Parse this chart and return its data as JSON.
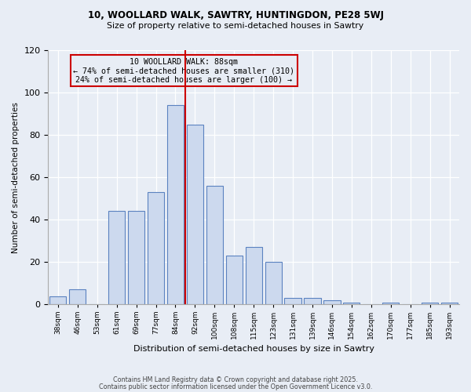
{
  "title1": "10, WOOLLARD WALK, SAWTRY, HUNTINGDON, PE28 5WJ",
  "title2": "Size of property relative to semi-detached houses in Sawtry",
  "xlabel": "Distribution of semi-detached houses by size in Sawtry",
  "ylabel": "Number of semi-detached properties",
  "bin_labels": [
    "38sqm",
    "46sqm",
    "53sqm",
    "61sqm",
    "69sqm",
    "77sqm",
    "84sqm",
    "92sqm",
    "100sqm",
    "108sqm",
    "115sqm",
    "123sqm",
    "131sqm",
    "139sqm",
    "146sqm",
    "154sqm",
    "162sqm",
    "170sqm",
    "177sqm",
    "185sqm",
    "193sqm"
  ],
  "bar_heights": [
    4,
    7,
    0,
    44,
    44,
    53,
    94,
    85,
    56,
    23,
    27,
    20,
    3,
    3,
    2,
    1,
    0,
    1,
    0,
    1,
    1
  ],
  "bar_color": "#ccd9ee",
  "bar_edge_color": "#5b82c0",
  "vline_x": 7,
  "vline_color": "#cc0000",
  "annotation_title": "10 WOOLLARD WALK: 88sqm",
  "annotation_line1": "← 74% of semi-detached houses are smaller (310)",
  "annotation_line2": "24% of semi-detached houses are larger (100) →",
  "annotation_box_color": "#cc0000",
  "ylim": [
    0,
    120
  ],
  "yticks": [
    0,
    20,
    40,
    60,
    80,
    100,
    120
  ],
  "footer1": "Contains HM Land Registry data © Crown copyright and database right 2025.",
  "footer2": "Contains public sector information licensed under the Open Government Licence v3.0.",
  "bg_color": "#e8edf5"
}
